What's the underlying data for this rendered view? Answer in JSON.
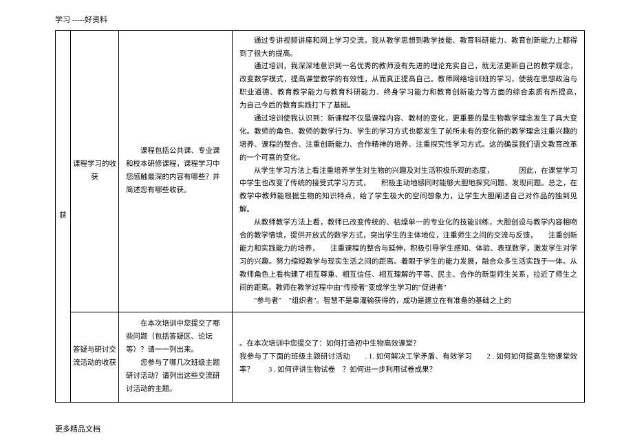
{
  "header": "学习 -----好资料",
  "footer": "更多精品文档",
  "table": {
    "col1_label": "获",
    "row1": {
      "title": "课程学习的收获",
      "prompt": "课程包括公共课、专业课和校本研修课程，课程学习中您感触最深的内容有哪些？并简述您有哪些收获。",
      "p1": "通过专讲视频讲座和网上学习交流，我从教学思想到教学技能、教育科研能力、教育创新能力上都得到了很大的提高。",
      "p2": "通过培训，我深深地意识到一名优秀的教师没有先进的理论充实自己，就无法更新自己的教学观念，改变数学模式，提高课堂教学的有效性，从而真正提高自己。教师网络培训班的学习，使我在思想政治与职业道德、教育教学能力与教育科研能力、终身学习能力和教育创新能力等方面的综合素质有所提高，　　为自己今后的教育实践打下了基础。",
      "p3": "通过培训使我认识到：新课程不仅是课程内容、教材的变化，更重要的是生物教学理念发生了具大变化。教师的角色、教师的教学行为、学生的学习方式也都发生了前所未有的变化新的教学理念注重兴趣的培养、课程的整合、注重创新能力、合作精神的培养、注重探究性学习方式。这的确是我们语文教育改革的一个可喜的变化。",
      "p4": "从学生学习方法上看注重培养学生对生物的兴趣及对生活积极乐观的态度，　　　　因此，在课堂学习中学生也改变了传统的接受式学习方式，　　积极主动地感同时能够大胆地探究问题、发现问题。总之，在教学中教师能根据生物的知识特点，给了学生极大的空间想象力，让学生大胆阐述自己对作品的独到见解。",
      "p5": "从教师教学方法上看，教师已改变传统的、枯燥单一的专业化的技能训练，大胆创设与教学内容相吻合的教学情境，提供开放式的数学方式，突出学生的主体地位，注重师生之间的交流与反馈，　　注重创新能力和实践能力的培养，　　注重课程的整合与延伸，积极引导学生感知、体验、表现数学，激发学生对学习的兴趣。努力缩短教学与现实生活之间的距离。着眼于学生的能力发展，融合众多生活实践于一体。从教师角色上看构建了相互尊重、相互信任、相互理解的平等、民主、合作的新型师生关系，拉近了师生之间的距离。教师在教学过程中由\"传授者\"变成学生学习的\"促进者\"",
      "p6": "\"参与者\"　\"组织者\"。智慧不是靠灌输获得的，成功是建立在有准备的基础之上的"
    },
    "row2": {
      "title": "答疑与研讨交流活动的收获",
      "prompt_p1": "在本次培训中您提交了哪些问题（包括答疑区、论坛等）？请一一列出来。",
      "prompt_p2": "您参与了哪几次班级主题研讨活动？请列出这些交流研讨活动的主题。",
      "content_p1": "。在本次培训中您提交了：如何打造初中生物高效课堂？",
      "content_p2": "我参与了下面的班级主题研讨活动　　. 1. 如何解决工学矛盾、有效学习　　2 . 如何如何提高生物课堂效率？　　3 . 如何评讲生物试卷　？如何进一步利用试卷成果？"
    }
  }
}
